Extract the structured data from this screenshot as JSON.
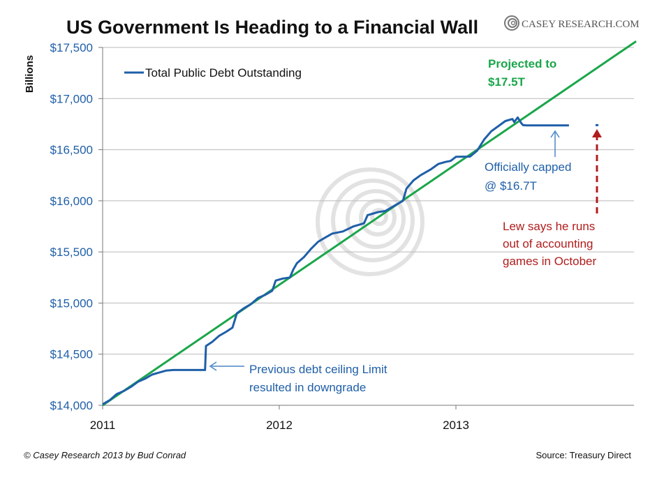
{
  "title": "US Government Is Heading to a Financial Wall",
  "brand": {
    "name": "CASEY RESEARCH.COM"
  },
  "footer": {
    "credit": "© Casey Research 2013 by Bud Conrad",
    "source": "Source: Treasury Direct"
  },
  "colors": {
    "debt_series": "#1f5fa8",
    "projection": "#1aa64a",
    "annotation_red": "#b11c1c",
    "grid": "#b9b9b9"
  },
  "chart_data": {
    "type": "line",
    "title": "US Government Is Heading to a Financial Wall",
    "ylabel": "Billions",
    "xlabel": "",
    "ylim": [
      14000,
      17500
    ],
    "xlim": [
      2011.0,
      2014.02
    ],
    "y_ticks": [
      14000,
      14500,
      15000,
      15500,
      16000,
      16500,
      17000,
      17500
    ],
    "y_tick_labels": [
      "$14,000",
      "$14,500",
      "$15,000",
      "$15,500",
      "$16,000",
      "$16,500",
      "$17,000",
      "$17,500"
    ],
    "x_ticks": [
      2011,
      2012,
      2013
    ],
    "x_tick_labels": [
      "2011",
      "2012",
      "2013"
    ],
    "grid": "horizontal",
    "legend_position": "top-left",
    "series": [
      {
        "name": "Total Public Debt Outstanding",
        "points": [
          [
            2011.0,
            14010
          ],
          [
            2011.04,
            14050
          ],
          [
            2011.08,
            14110
          ],
          [
            2011.12,
            14140
          ],
          [
            2011.16,
            14180
          ],
          [
            2011.2,
            14230
          ],
          [
            2011.24,
            14260
          ],
          [
            2011.28,
            14300
          ],
          [
            2011.32,
            14320
          ],
          [
            2011.36,
            14340
          ],
          [
            2011.4,
            14345
          ],
          [
            2011.5,
            14345
          ],
          [
            2011.58,
            14345
          ],
          [
            2011.585,
            14580
          ],
          [
            2011.62,
            14620
          ],
          [
            2011.66,
            14680
          ],
          [
            2011.7,
            14720
          ],
          [
            2011.735,
            14760
          ],
          [
            2011.76,
            14900
          ],
          [
            2011.8,
            14950
          ],
          [
            2011.84,
            14990
          ],
          [
            2011.88,
            15050
          ],
          [
            2011.92,
            15080
          ],
          [
            2011.96,
            15120
          ],
          [
            2011.98,
            15220
          ],
          [
            2012.02,
            15240
          ],
          [
            2012.06,
            15250
          ],
          [
            2012.08,
            15330
          ],
          [
            2012.1,
            15390
          ],
          [
            2012.14,
            15450
          ],
          [
            2012.18,
            15530
          ],
          [
            2012.22,
            15600
          ],
          [
            2012.26,
            15640
          ],
          [
            2012.3,
            15680
          ],
          [
            2012.36,
            15700
          ],
          [
            2012.42,
            15750
          ],
          [
            2012.48,
            15780
          ],
          [
            2012.5,
            15860
          ],
          [
            2012.56,
            15890
          ],
          [
            2012.6,
            15900
          ],
          [
            2012.66,
            15960
          ],
          [
            2012.7,
            16000
          ],
          [
            2012.72,
            16120
          ],
          [
            2012.76,
            16200
          ],
          [
            2012.8,
            16250
          ],
          [
            2012.86,
            16310
          ],
          [
            2012.9,
            16360
          ],
          [
            2012.94,
            16380
          ],
          [
            2012.97,
            16390
          ],
          [
            2013.0,
            16430
          ],
          [
            2013.08,
            16432
          ],
          [
            2013.12,
            16490
          ],
          [
            2013.16,
            16600
          ],
          [
            2013.2,
            16680
          ],
          [
            2013.24,
            16730
          ],
          [
            2013.28,
            16780
          ],
          [
            2013.32,
            16800
          ],
          [
            2013.33,
            16770
          ],
          [
            2013.35,
            16815
          ],
          [
            2013.37,
            16760
          ],
          [
            2013.38,
            16740
          ],
          [
            2013.4,
            16738
          ],
          [
            2013.5,
            16738
          ],
          [
            2013.6,
            16738
          ],
          [
            2013.64,
            16738
          ]
        ]
      },
      {
        "name": "",
        "style": "projection",
        "points": [
          [
            2011.0,
            14000
          ],
          [
            2014.02,
            17560
          ]
        ]
      }
    ],
    "annotations": {
      "projection_label": [
        "Projected to",
        "$17.5T"
      ],
      "capped_label": [
        "Officially capped",
        "@ $16.7T"
      ],
      "ceiling_label": [
        "Previous debt ceiling Limit",
        "resulted in downgrade"
      ],
      "lew_label": [
        "Lew says he runs",
        "out of accounting",
        "games in October"
      ],
      "lew_marker_value": 16740
    }
  }
}
